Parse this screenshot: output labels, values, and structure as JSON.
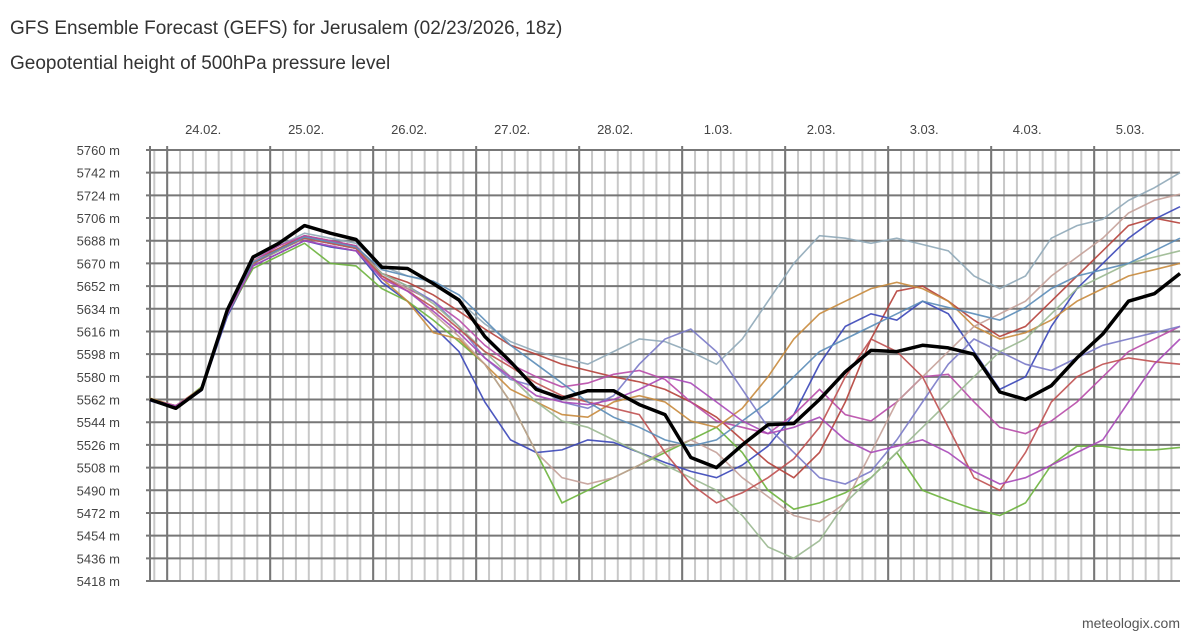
{
  "header": {
    "title": "GFS Ensemble Forecast (GEFS) for Jerusalem (02/23/2026, 18z)",
    "subtitle": "Geopotential height of 500hPa pressure level"
  },
  "footer": {
    "credit": "meteologix.com"
  },
  "chart_data": {
    "type": "line",
    "title": "GFS Ensemble Forecast (GEFS) for Jerusalem (02/23/2026, 18z)",
    "subtitle": "Geopotential height of 500hPa pressure level",
    "x_tick_labels": [
      "24.02.",
      "25.02.",
      "26.02.",
      "27.02.",
      "28.02.",
      "1.03.",
      "2.03.",
      "3.03.",
      "4.03.",
      "5.03."
    ],
    "x_tick_dates": [
      "2026-02-24T00:00",
      "2026-02-25T00:00",
      "2026-02-26T00:00",
      "2026-02-27T00:00",
      "2026-02-28T00:00",
      "2026-03-01T00:00",
      "2026-03-02T00:00",
      "2026-03-03T00:00",
      "2026-03-04T00:00",
      "2026-03-05T00:00"
    ],
    "xlim": [
      "2026-02-23T20:00",
      "2026-03-05T20:00"
    ],
    "y_tick_labels": [
      "5760 m",
      "5742 m",
      "5724 m",
      "5706 m",
      "5688 m",
      "5670 m",
      "5652 m",
      "5634 m",
      "5616 m",
      "5598 m",
      "5580 m",
      "5562 m",
      "5544 m",
      "5526 m",
      "5508 m",
      "5490 m",
      "5472 m",
      "5454 m",
      "5436 m",
      "5418 m"
    ],
    "ylim": [
      5418,
      5760
    ],
    "y_unit": "m",
    "grid": true,
    "x": [
      "2026-02-23T20:00",
      "2026-02-24T02:00",
      "2026-02-24T08:00",
      "2026-02-24T14:00",
      "2026-02-24T20:00",
      "2026-02-25T02:00",
      "2026-02-25T08:00",
      "2026-02-25T14:00",
      "2026-02-25T20:00",
      "2026-02-26T02:00",
      "2026-02-26T08:00",
      "2026-02-26T14:00",
      "2026-02-26T20:00",
      "2026-02-27T02:00",
      "2026-02-27T08:00",
      "2026-02-27T14:00",
      "2026-02-27T20:00",
      "2026-02-28T02:00",
      "2026-02-28T08:00",
      "2026-02-28T14:00",
      "2026-02-28T20:00",
      "2026-03-01T02:00",
      "2026-03-01T08:00",
      "2026-03-01T14:00",
      "2026-03-01T20:00",
      "2026-03-02T02:00",
      "2026-03-02T08:00",
      "2026-03-02T14:00",
      "2026-03-02T20:00",
      "2026-03-03T02:00",
      "2026-03-03T08:00",
      "2026-03-03T14:00",
      "2026-03-03T20:00",
      "2026-03-04T02:00",
      "2026-03-04T08:00",
      "2026-03-04T14:00",
      "2026-03-04T20:00",
      "2026-03-05T02:00",
      "2026-03-05T08:00",
      "2026-03-05T14:00",
      "2026-03-05T20:00"
    ],
    "members": [
      {
        "color": "#b5403a",
        "values": [
          5562,
          5557,
          5571,
          5632,
          5672,
          5682,
          5692,
          5688,
          5684,
          5662,
          5655,
          5645,
          5632,
          5618,
          5605,
          5598,
          5590,
          5585,
          5580,
          5576,
          5570,
          5560,
          5548,
          5530,
          5512,
          5500,
          5520,
          5560,
          5610,
          5648,
          5652,
          5640,
          5625,
          5612,
          5620,
          5640,
          5660,
          5680,
          5700,
          5706,
          5702
        ]
      },
      {
        "color": "#3a46b8",
        "values": [
          5561,
          5555,
          5569,
          5628,
          5668,
          5678,
          5688,
          5683,
          5680,
          5655,
          5640,
          5620,
          5600,
          5560,
          5530,
          5520,
          5522,
          5530,
          5528,
          5520,
          5512,
          5505,
          5500,
          5510,
          5525,
          5550,
          5590,
          5620,
          5630,
          5625,
          5640,
          5630,
          5600,
          5570,
          5580,
          5620,
          5650,
          5670,
          5690,
          5705,
          5715
        ]
      },
      {
        "color": "#6bb33c",
        "values": [
          5563,
          5556,
          5572,
          5630,
          5666,
          5676,
          5686,
          5670,
          5668,
          5650,
          5640,
          5625,
          5608,
          5590,
          5560,
          5520,
          5480,
          5490,
          5500,
          5510,
          5520,
          5530,
          5540,
          5520,
          5490,
          5475,
          5480,
          5488,
          5500,
          5520,
          5490,
          5482,
          5475,
          5470,
          5480,
          5510,
          5525,
          5525,
          5522,
          5522,
          5524
        ]
      },
      {
        "color": "#8fa8b8",
        "values": [
          5562,
          5556,
          5570,
          5633,
          5674,
          5684,
          5694,
          5690,
          5686,
          5668,
          5660,
          5655,
          5640,
          5622,
          5608,
          5600,
          5595,
          5590,
          5600,
          5610,
          5608,
          5600,
          5590,
          5610,
          5640,
          5670,
          5692,
          5690,
          5686,
          5690,
          5685,
          5680,
          5660,
          5650,
          5660,
          5690,
          5700,
          5705,
          5720,
          5730,
          5742
        ]
      },
      {
        "color": "#b84aa8",
        "values": [
          5562,
          5557,
          5571,
          5632,
          5672,
          5684,
          5692,
          5688,
          5684,
          5660,
          5650,
          5640,
          5625,
          5605,
          5590,
          5580,
          5572,
          5575,
          5582,
          5585,
          5578,
          5560,
          5545,
          5540,
          5535,
          5550,
          5570,
          5550,
          5545,
          5560,
          5580,
          5582,
          5560,
          5540,
          5535,
          5545,
          5560,
          5580,
          5600,
          5610,
          5620
        ]
      },
      {
        "color": "#c88a3c",
        "values": [
          5563,
          5557,
          5571,
          5634,
          5670,
          5680,
          5690,
          5686,
          5682,
          5658,
          5640,
          5615,
          5610,
          5590,
          5570,
          5560,
          5550,
          5548,
          5560,
          5565,
          5560,
          5545,
          5540,
          5555,
          5580,
          5610,
          5630,
          5640,
          5650,
          5655,
          5650,
          5640,
          5620,
          5610,
          5615,
          5625,
          5640,
          5650,
          5660,
          5665,
          5670
        ]
      },
      {
        "color": "#7a7ac8",
        "values": [
          5562,
          5556,
          5570,
          5630,
          5670,
          5680,
          5690,
          5686,
          5682,
          5662,
          5652,
          5640,
          5620,
          5595,
          5578,
          5572,
          5560,
          5555,
          5565,
          5590,
          5610,
          5618,
          5600,
          5570,
          5540,
          5520,
          5500,
          5495,
          5505,
          5530,
          5560,
          5590,
          5610,
          5600,
          5590,
          5585,
          5595,
          5605,
          5610,
          5615,
          5620
        ]
      },
      {
        "color": "#c4a098",
        "values": [
          5562,
          5557,
          5570,
          5632,
          5672,
          5680,
          5690,
          5686,
          5682,
          5660,
          5650,
          5630,
          5612,
          5590,
          5560,
          5520,
          5500,
          5495,
          5500,
          5510,
          5522,
          5530,
          5520,
          5500,
          5485,
          5470,
          5465,
          5480,
          5520,
          5560,
          5580,
          5600,
          5620,
          5630,
          5640,
          5660,
          5675,
          5690,
          5710,
          5720,
          5725
        ]
      },
      {
        "color": "#9ab890",
        "values": [
          5562,
          5556,
          5570,
          5630,
          5670,
          5680,
          5690,
          5686,
          5682,
          5662,
          5652,
          5638,
          5620,
          5600,
          5580,
          5560,
          5545,
          5540,
          5530,
          5520,
          5510,
          5500,
          5490,
          5470,
          5445,
          5436,
          5450,
          5480,
          5500,
          5520,
          5540,
          5560,
          5580,
          5600,
          5610,
          5630,
          5650,
          5660,
          5670,
          5675,
          5680
        ]
      },
      {
        "color": "#c05050",
        "values": [
          5562,
          5556,
          5571,
          5632,
          5670,
          5681,
          5690,
          5686,
          5682,
          5660,
          5648,
          5635,
          5618,
          5600,
          5588,
          5575,
          5565,
          5560,
          5555,
          5550,
          5520,
          5495,
          5480,
          5488,
          5500,
          5515,
          5540,
          5580,
          5610,
          5600,
          5580,
          5540,
          5500,
          5490,
          5520,
          5560,
          5580,
          5590,
          5595,
          5592,
          5590
        ]
      },
      {
        "color": "#5a8cb8",
        "values": [
          5562,
          5556,
          5570,
          5631,
          5671,
          5681,
          5691,
          5687,
          5683,
          5665,
          5660,
          5656,
          5645,
          5625,
          5605,
          5590,
          5575,
          5560,
          5548,
          5540,
          5530,
          5525,
          5530,
          5545,
          5560,
          5580,
          5600,
          5610,
          5620,
          5630,
          5640,
          5635,
          5630,
          5625,
          5635,
          5650,
          5660,
          5665,
          5670,
          5680,
          5690
        ]
      },
      {
        "color": "#a848b8",
        "values": [
          5562,
          5557,
          5570,
          5630,
          5668,
          5678,
          5688,
          5684,
          5680,
          5658,
          5648,
          5632,
          5615,
          5595,
          5580,
          5565,
          5560,
          5558,
          5562,
          5570,
          5580,
          5575,
          5560,
          5545,
          5535,
          5540,
          5548,
          5530,
          5520,
          5525,
          5530,
          5520,
          5505,
          5495,
          5500,
          5510,
          5520,
          5530,
          5560,
          5590,
          5610
        ]
      }
    ],
    "main_series": {
      "color": "#000000",
      "values": [
        5562,
        5555,
        5570,
        5633,
        5675,
        5686,
        5700,
        5694,
        5689,
        5667,
        5666,
        5654,
        5641,
        5612,
        5592,
        5570,
        5563,
        5569,
        5569,
        5558,
        5550,
        5516,
        5508,
        5526,
        5542,
        5543,
        5562,
        5584,
        5601,
        5600,
        5605,
        5603,
        5598,
        5568,
        5562,
        5573,
        5595,
        5614,
        5640,
        5646,
        5662
      ]
    }
  }
}
